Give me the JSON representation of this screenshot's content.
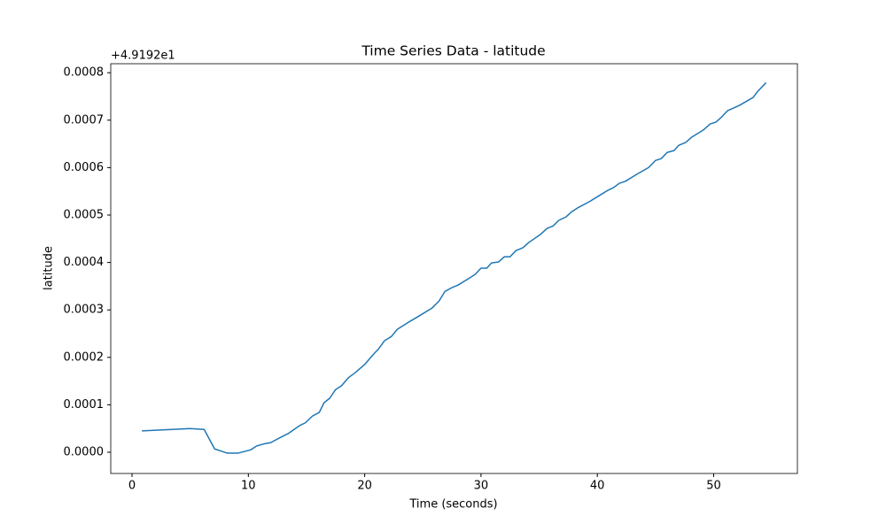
{
  "chart_data": {
    "type": "line",
    "title": "Time Series Data - latitude",
    "xlabel": "Time (seconds)",
    "ylabel": "latitude",
    "y_offset_label": "+4.9192e1",
    "x": [
      0.85,
      5.0,
      6.2,
      7.1,
      8.2,
      9.1,
      10.2,
      10.7,
      11.4,
      11.9,
      12.9,
      13.4,
      14.4,
      14.9,
      15.5,
      16.1,
      16.5,
      17.0,
      17.5,
      18.0,
      18.6,
      19.2,
      20.0,
      20.7,
      21.2,
      21.7,
      22.3,
      22.8,
      23.9,
      24.8,
      25.8,
      26.4,
      26.9,
      27.5,
      28.0,
      29.0,
      29.5,
      30.0,
      30.5,
      30.9,
      31.5,
      32.0,
      32.5,
      33.0,
      33.6,
      34.1,
      35.1,
      35.7,
      36.2,
      36.7,
      37.3,
      37.8,
      38.3,
      39.3,
      40.3,
      40.9,
      41.4,
      41.9,
      42.4,
      43.4,
      44.4,
      45.0,
      45.5,
      46.0,
      46.6,
      47.0,
      47.6,
      48.1,
      49.1,
      49.7,
      50.2,
      50.7,
      51.2,
      52.2,
      53.4,
      53.8,
      54.5
    ],
    "series": [
      {
        "name": "latitude",
        "color": "#1f77b4",
        "values": [
          4.5e-05,
          5e-05,
          4.8e-05,
          7e-06,
          -2e-06,
          -2e-06,
          5e-06,
          1.3e-05,
          1.8e-05,
          2e-05,
          3.3e-05,
          3.9e-05,
          5.6e-05,
          6.2e-05,
          7.6e-05,
          8.4e-05,
          0.000104,
          0.000114,
          0.000132,
          0.00014,
          0.000157,
          0.000168,
          0.000185,
          0.000205,
          0.000218,
          0.000235,
          0.000244,
          0.000259,
          0.000276,
          0.000289,
          0.000304,
          0.000319,
          0.000339,
          0.000347,
          0.000352,
          0.000367,
          0.000375,
          0.000388,
          0.000388,
          0.000399,
          0.000401,
          0.000412,
          0.000412,
          0.000425,
          0.000431,
          0.000442,
          0.000459,
          0.000472,
          0.000477,
          0.000489,
          0.000496,
          0.000507,
          0.000515,
          0.000528,
          0.000543,
          0.000552,
          0.000558,
          0.000567,
          0.000571,
          0.000586,
          0.0006,
          0.000615,
          0.000619,
          0.000632,
          0.000636,
          0.000647,
          0.000653,
          0.000664,
          0.000679,
          0.000692,
          0.000696,
          0.000707,
          0.00072,
          0.000731,
          0.000748,
          0.000761,
          0.000779
        ]
      }
    ],
    "xlim": [
      -1.83,
      57.2
    ],
    "ylim": [
      -4.48e-05,
      0.000819
    ],
    "xticks": [
      0,
      10,
      20,
      30,
      40,
      50
    ],
    "yticks": [
      {
        "value": 0,
        "label": "0.0000"
      },
      {
        "value": 0.0001,
        "label": "0.0001"
      },
      {
        "value": 0.0002,
        "label": "0.0002"
      },
      {
        "value": 0.0003,
        "label": "0.0003"
      },
      {
        "value": 0.0004,
        "label": "0.0004"
      },
      {
        "value": 0.0005,
        "label": "0.0005"
      },
      {
        "value": 0.0006,
        "label": "0.0006"
      },
      {
        "value": 0.0007,
        "label": "0.0007"
      },
      {
        "value": 0.0008,
        "label": "0.0008"
      }
    ],
    "grid": false
  }
}
